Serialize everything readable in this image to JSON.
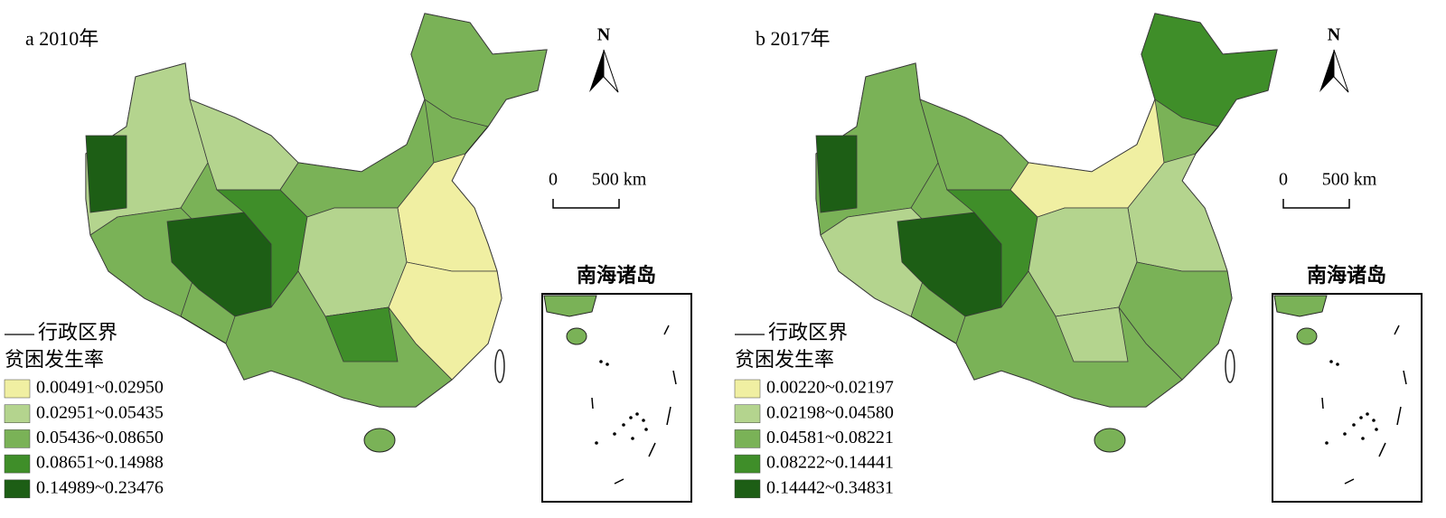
{
  "panels": [
    {
      "label": "a 2010年",
      "north": "N",
      "scale": {
        "zero": "0",
        "distance": "500 km"
      },
      "inset_title": "南海诸岛",
      "boundary_label": "行政区界",
      "legend_title": "贫困发生率",
      "classes": [
        {
          "label": "0.00491~0.02950",
          "color": "#f0efa2"
        },
        {
          "label": "0.02951~0.05435",
          "color": "#b4d48e"
        },
        {
          "label": "0.05436~0.08650",
          "color": "#7ab257"
        },
        {
          "label": "0.08651~0.14988",
          "color": "#3f8e29"
        },
        {
          "label": "0.14989~0.23476",
          "color": "#1d5e15"
        }
      ]
    },
    {
      "label": "b 2017年",
      "north": "N",
      "scale": {
        "zero": "0",
        "distance": "500 km"
      },
      "inset_title": "南海诸岛",
      "boundary_label": "行政区界",
      "legend_title": "贫困发生率",
      "classes": [
        {
          "label": "0.00220~0.02197",
          "color": "#f0efa2"
        },
        {
          "label": "0.02198~0.04580",
          "color": "#b4d48e"
        },
        {
          "label": "0.04581~0.08221",
          "color": "#7ab257"
        },
        {
          "label": "0.08222~0.14441",
          "color": "#3f8e29"
        },
        {
          "label": "0.14442~0.34831",
          "color": "#1d5e15"
        }
      ]
    }
  ]
}
